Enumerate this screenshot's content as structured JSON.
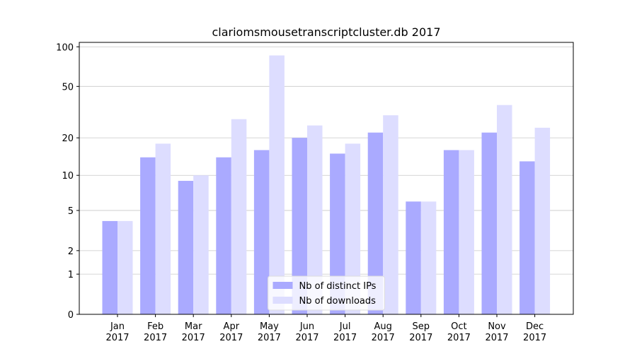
{
  "chart_data": {
    "type": "bar",
    "title": "clariomsmousetranscriptcluster.db 2017",
    "categories": [
      "Jan\n2017",
      "Feb\n2017",
      "Mar\n2017",
      "Apr\n2017",
      "May\n2017",
      "Jun\n2017",
      "Jul\n2017",
      "Aug\n2017",
      "Sep\n2017",
      "Oct\n2017",
      "Nov\n2017",
      "Dec\n2017"
    ],
    "series": [
      {
        "name": "Nb of distinct IPs",
        "color": "#aaaaff",
        "values": [
          4,
          14,
          9,
          14,
          16,
          20,
          15,
          22,
          6,
          16,
          22,
          13
        ]
      },
      {
        "name": "Nb of downloads",
        "color": "#ddddff",
        "values": [
          4,
          18,
          10,
          28,
          86,
          25,
          18,
          30,
          6,
          16,
          36,
          24
        ]
      }
    ],
    "y_scale": "log1p",
    "ylim": [
      0,
      108
    ],
    "yticks": [
      0,
      1,
      2,
      5,
      10,
      20,
      50,
      100
    ],
    "grid": true,
    "legend": "lower center"
  }
}
